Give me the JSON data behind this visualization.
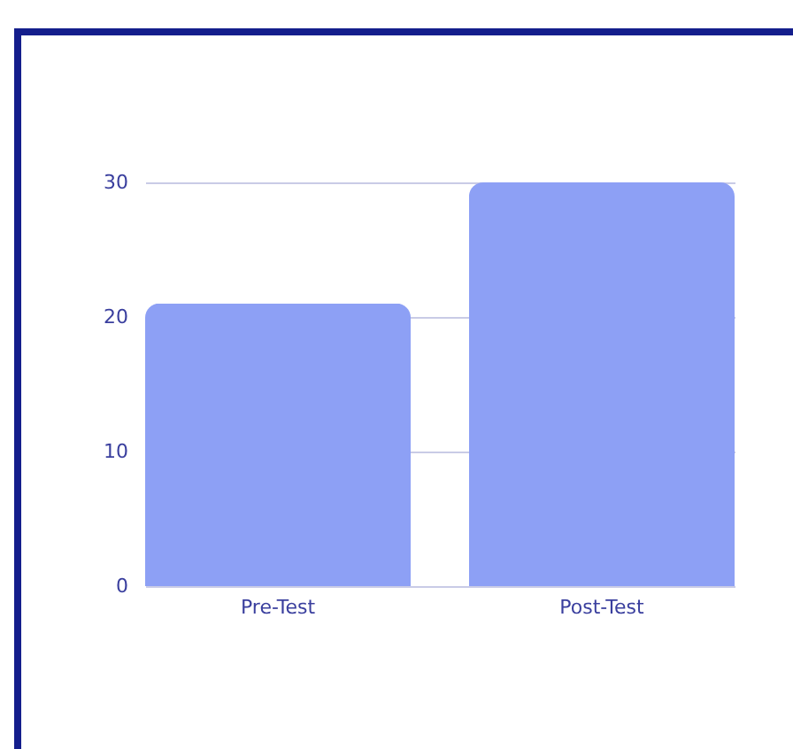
{
  "chart_data": {
    "type": "bar",
    "categories": [
      "Pre-Test",
      "Post-Test"
    ],
    "values": [
      21,
      30
    ],
    "color": "#8da0f5",
    "ylim": [
      0,
      30
    ],
    "yticks": [
      0,
      10,
      20,
      30
    ],
    "grid": "y"
  }
}
